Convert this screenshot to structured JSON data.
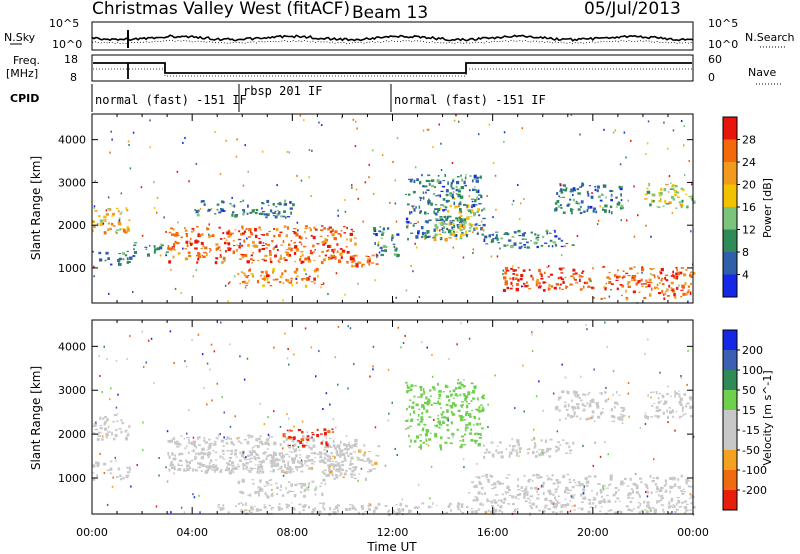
{
  "header": {
    "title": "Christmas Valley West (fitACF)",
    "beam": "Beam 13",
    "date": "05/Jul/2013"
  },
  "top_panels": {
    "nsky_label": "N.Sky",
    "nsearch_label": "N.Search",
    "noise_ticks": [
      "10^5",
      "10^0"
    ],
    "freq_label_1": "Freq.",
    "freq_label_2": "[MHz]",
    "freq_ticks": [
      "18",
      "8"
    ],
    "nave_label": "Nave",
    "nave_ticks": [
      "60",
      "0"
    ],
    "cpid_label": "CPID",
    "modes": [
      "normal (fast) -151 IF",
      "rbsp 201 IF",
      "normal (fast) -151 IF"
    ]
  },
  "colors": {
    "power_scale": [
      "#1428e6",
      "#2f5fa8",
      "#2e8b57",
      "#7cc47c",
      "#f2c200",
      "#f39a1c",
      "#f26a0c",
      "#e8150c"
    ],
    "velocity_scale": [
      "#1428e6",
      "#3c5fb4",
      "#2e8b57",
      "#6fd04e",
      "#c8c8c8",
      "#c8c8c8",
      "#f4a020",
      "#f06a10",
      "#e81e0c"
    ],
    "ground_scatter": "#c8c8c8",
    "frame": "#000000"
  },
  "chart_data": [
    {
      "type": "heatmap",
      "panel": "power",
      "xlabel": "",
      "ylabel": "Slant Range [km]",
      "x_ticks": [
        "00:00",
        "04:00",
        "08:00",
        "12:00",
        "16:00",
        "20:00",
        "00:00"
      ],
      "y_ticks": [
        1000,
        2000,
        3000,
        4000
      ],
      "ylim": [
        180,
        4600
      ],
      "xlim_hours": [
        0,
        24
      ],
      "colorbar": {
        "label": "Power [dB]",
        "ticks": [
          4,
          8,
          12,
          16,
          20,
          24,
          28
        ],
        "range": [
          0,
          32
        ]
      },
      "regions": [
        {
          "t0": 0.0,
          "t1": 1.5,
          "r0": 1850,
          "r1": 2500,
          "level": 20
        },
        {
          "t0": 0.0,
          "t1": 1.5,
          "r0": 1100,
          "r1": 1400,
          "level": 8
        },
        {
          "t0": 1.6,
          "t1": 3.0,
          "r0": 1300,
          "r1": 1600,
          "level": 8
        },
        {
          "t0": 3.0,
          "t1": 10.6,
          "r0": 1150,
          "r1": 2000,
          "level": 26
        },
        {
          "t0": 4.0,
          "t1": 8.0,
          "r0": 2200,
          "r1": 2600,
          "level": 8
        },
        {
          "t0": 5.8,
          "t1": 9.2,
          "r0": 600,
          "r1": 1000,
          "level": 24
        },
        {
          "t0": 10.0,
          "t1": 11.4,
          "r0": 1000,
          "r1": 1350,
          "level": 26
        },
        {
          "t0": 11.2,
          "t1": 12.2,
          "r0": 1300,
          "r1": 2000,
          "level": 8
        },
        {
          "t0": 12.5,
          "t1": 15.6,
          "r0": 1700,
          "r1": 3200,
          "level": 8
        },
        {
          "t0": 13.6,
          "t1": 15.4,
          "r0": 1700,
          "r1": 2500,
          "level": 16
        },
        {
          "t0": 15.6,
          "t1": 19.2,
          "r0": 1500,
          "r1": 1900,
          "level": 8
        },
        {
          "t0": 16.3,
          "t1": 20.0,
          "r0": 500,
          "r1": 1050,
          "level": 28
        },
        {
          "t0": 18.4,
          "t1": 21.2,
          "r0": 2300,
          "r1": 3000,
          "level": 8
        },
        {
          "t0": 20.3,
          "t1": 24.0,
          "r0": 300,
          "r1": 1050,
          "level": 26
        },
        {
          "t0": 22.0,
          "t1": 24.0,
          "r0": 2400,
          "r1": 3000,
          "level": 16
        }
      ]
    },
    {
      "type": "heatmap",
      "panel": "velocity",
      "xlabel": "Time UT",
      "ylabel": "Slant Range [km]",
      "x_ticks": [
        "00:00",
        "04:00",
        "08:00",
        "12:00",
        "16:00",
        "20:00",
        "00:00"
      ],
      "y_ticks": [
        1000,
        2000,
        3000,
        4000
      ],
      "ylim": [
        180,
        4600
      ],
      "xlim_hours": [
        0,
        24
      ],
      "colorbar": {
        "label": "Velocity [m s^-1]",
        "ticks": [
          200,
          100,
          50,
          15,
          -15,
          -50,
          -100,
          -200
        ],
        "range": [
          -250,
          250
        ]
      },
      "regions": [
        {
          "t0": 0.0,
          "t1": 1.5,
          "r0": 1900,
          "r1": 2500,
          "level": 0
        },
        {
          "t0": 0.0,
          "t1": 1.5,
          "r0": 1000,
          "r1": 1400,
          "level": 0
        },
        {
          "t0": 3.0,
          "t1": 10.6,
          "r0": 1150,
          "r1": 2000,
          "level": 0
        },
        {
          "t0": 3.0,
          "t1": 10.0,
          "r0": 1150,
          "r1": 1600,
          "level": -60
        },
        {
          "t0": 5.8,
          "t1": 9.2,
          "r0": 600,
          "r1": 1000,
          "level": -60
        },
        {
          "t0": 7.6,
          "t1": 9.6,
          "r0": 1750,
          "r1": 2150,
          "level": -200
        },
        {
          "t0": 9.2,
          "t1": 11.4,
          "r0": 1000,
          "r1": 1800,
          "level": -70
        },
        {
          "t0": 12.5,
          "t1": 15.6,
          "r0": 1700,
          "r1": 3200,
          "level": 60
        },
        {
          "t0": 15.6,
          "t1": 19.2,
          "r0": 1500,
          "r1": 1900,
          "level": 0
        },
        {
          "t0": 15.0,
          "t1": 24.0,
          "r0": 450,
          "r1": 1100,
          "level": 0
        },
        {
          "t0": 18.4,
          "t1": 21.2,
          "r0": 2300,
          "r1": 3000,
          "level": 0
        },
        {
          "t0": 22.0,
          "t1": 24.0,
          "r0": 2400,
          "r1": 3000,
          "level": 0
        },
        {
          "t0": 5.0,
          "t1": 24.0,
          "r0": 200,
          "r1": 450,
          "level": -60
        }
      ]
    }
  ]
}
